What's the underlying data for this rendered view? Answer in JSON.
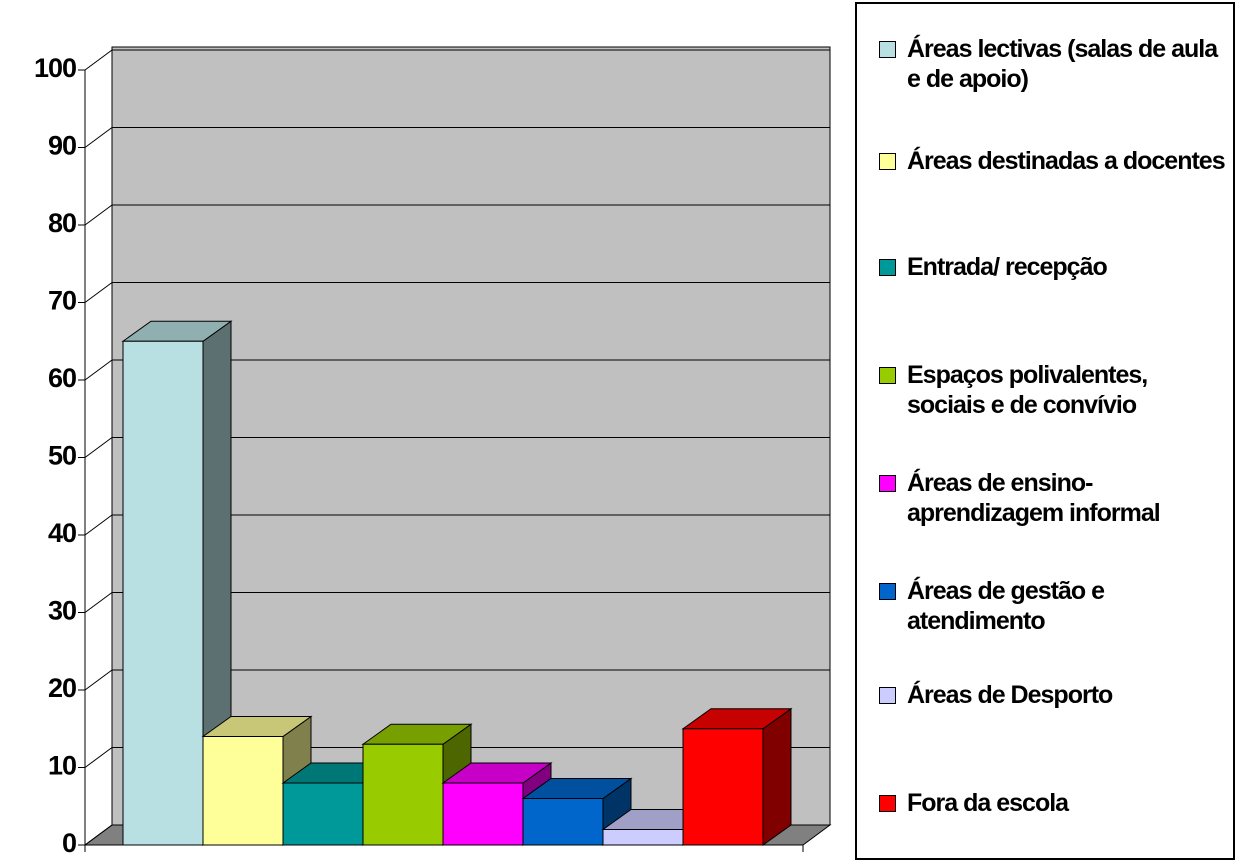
{
  "chart_data": {
    "type": "bar",
    "categories": [
      "Áreas lectivas (salas de aula e de apoio)",
      "Áreas destinadas a docentes",
      "Entrada/ recepção",
      "Espaços polivalentes, sociais e de convívio",
      "Áreas de ensino-aprendizagem informal",
      "Áreas de gestão e atendimento",
      "Áreas de Desporto",
      "Fora da escola"
    ],
    "values": [
      65,
      14,
      8,
      13,
      8,
      6,
      2,
      15
    ],
    "colors": [
      "#b8e0e3",
      "#ffff99",
      "#009999",
      "#99cc00",
      "#ff00ff",
      "#0066cc",
      "#ccccff",
      "#ff0000"
    ],
    "ylim": [
      0,
      100
    ],
    "yticks": [
      0,
      10,
      20,
      30,
      40,
      50,
      60,
      70,
      80,
      90,
      100
    ],
    "grid": true,
    "legend": "right"
  }
}
